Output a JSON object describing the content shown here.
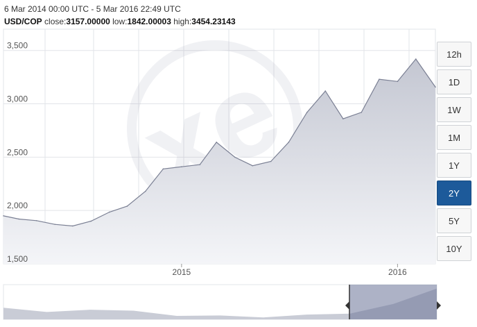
{
  "header": {
    "range": "6 Mar 2014 00:00 UTC - 5 Mar 2016 22:49 UTC",
    "pair": "USD/COP",
    "close_label": "close:",
    "close": "3157.00000",
    "low_label": "low:",
    "low": "1842.00003",
    "high_label": "high:",
    "high": "3454.23143"
  },
  "range_buttons": [
    {
      "label": "12h",
      "active": false
    },
    {
      "label": "1D",
      "active": false
    },
    {
      "label": "1W",
      "active": false
    },
    {
      "label": "1M",
      "active": false
    },
    {
      "label": "1Y",
      "active": false
    },
    {
      "label": "2Y",
      "active": true
    },
    {
      "label": "5Y",
      "active": false
    },
    {
      "label": "10Y",
      "active": false
    }
  ],
  "colors": {
    "line": "#7a7f93",
    "area_top": "#c4c7d2",
    "area_bottom": "#f4f5f8",
    "grid": "#e2e4e8",
    "selector_fill": "#6a7397",
    "navigator_fill": "#c9ccd6",
    "active_button": "#1d5a9a"
  },
  "chart_data": {
    "type": "area",
    "title": "",
    "xlabel": "",
    "ylabel": "",
    "ylim": [
      1500,
      3700
    ],
    "grid": true,
    "x_ticks": [
      "2015",
      "2016"
    ],
    "y_ticks": [
      1500,
      2000,
      2500,
      3000,
      3500
    ],
    "y_tick_labels": [
      "1,500",
      "2,000",
      "2,500",
      "3,000",
      "3,500"
    ],
    "x": [
      "2014-03-06",
      "2014-04-01",
      "2014-05-01",
      "2014-06-01",
      "2014-07-01",
      "2014-08-01",
      "2014-09-01",
      "2014-10-01",
      "2014-11-01",
      "2014-12-01",
      "2015-01-01",
      "2015-02-01",
      "2015-03-01",
      "2015-04-01",
      "2015-05-01",
      "2015-06-01",
      "2015-07-01",
      "2015-08-01",
      "2015-09-01",
      "2015-10-01",
      "2015-11-01",
      "2015-12-01",
      "2016-01-01",
      "2016-02-01",
      "2016-03-05"
    ],
    "values": [
      1950,
      1920,
      1905,
      1870,
      1855,
      1900,
      1985,
      2040,
      2180,
      2390,
      2410,
      2430,
      2640,
      2500,
      2420,
      2460,
      2640,
      2920,
      3120,
      2860,
      2920,
      3230,
      3210,
      3420,
      3157
    ]
  },
  "navigator": {
    "x": [
      "2006",
      "2007",
      "2008",
      "2009",
      "2010",
      "2011",
      "2012",
      "2013",
      "2014",
      "2015",
      "2016"
    ],
    "values": [
      2300,
      2080,
      2200,
      2150,
      1880,
      1900,
      1800,
      1950,
      2000,
      2500,
      3300
    ],
    "range_start": "2014-03-06",
    "range_end": "2016-03-05"
  }
}
